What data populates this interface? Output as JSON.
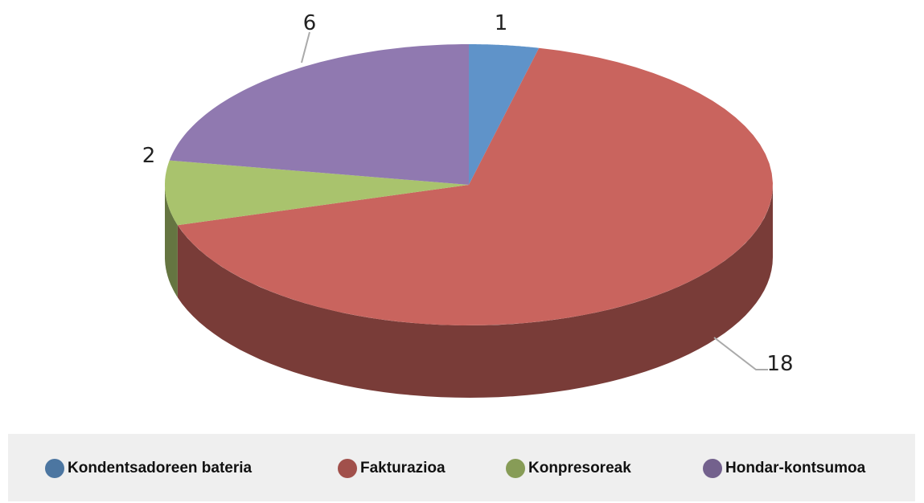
{
  "chart_data": {
    "type": "pie",
    "categories": [
      "Kondentsadoreen bateria",
      "Fakturazioa",
      "Konpresoreak",
      "Hondar-kontsumoa"
    ],
    "values": [
      1,
      18,
      2,
      6
    ],
    "colors": [
      "#5f93c9",
      "#c9645e",
      "#a9c36d",
      "#9079b0"
    ],
    "legend": "bottom"
  }
}
